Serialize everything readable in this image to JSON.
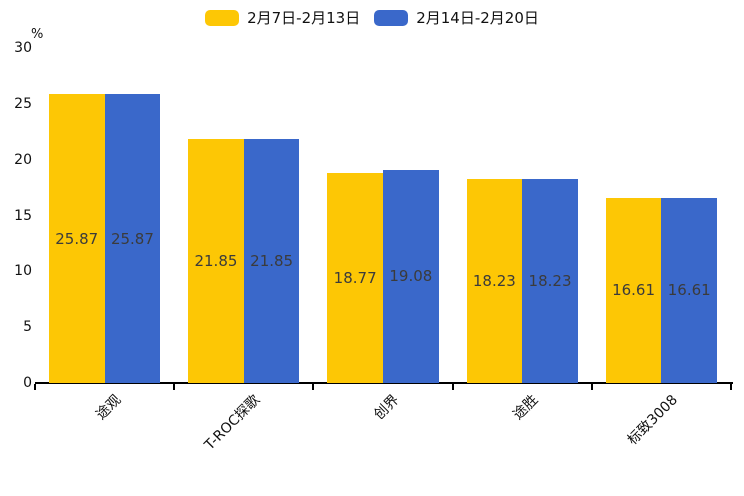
{
  "chart_data": {
    "type": "bar",
    "title": "",
    "unit_label": "%",
    "categories": [
      "途观",
      "T-ROC探歌",
      "创界",
      "途胜",
      "标致3008"
    ],
    "series": [
      {
        "name": "2月7日-2月13日",
        "color": "#FDC705",
        "values": [
          25.87,
          21.85,
          18.77,
          18.23,
          16.61
        ]
      },
      {
        "name": "2月14日-2月20日",
        "color": "#3A68CA",
        "values": [
          25.87,
          21.85,
          19.08,
          18.23,
          16.61
        ]
      }
    ],
    "ylim": [
      0,
      30
    ],
    "yticks": [
      0,
      5,
      10,
      15,
      20,
      25,
      30
    ],
    "grid": false,
    "legend_position": "top",
    "value_label_decimals": 2,
    "colors": {
      "axis": "#000000",
      "tick_label": "#111111",
      "value_label": "#3b3b3b",
      "background": "#ffffff"
    }
  }
}
